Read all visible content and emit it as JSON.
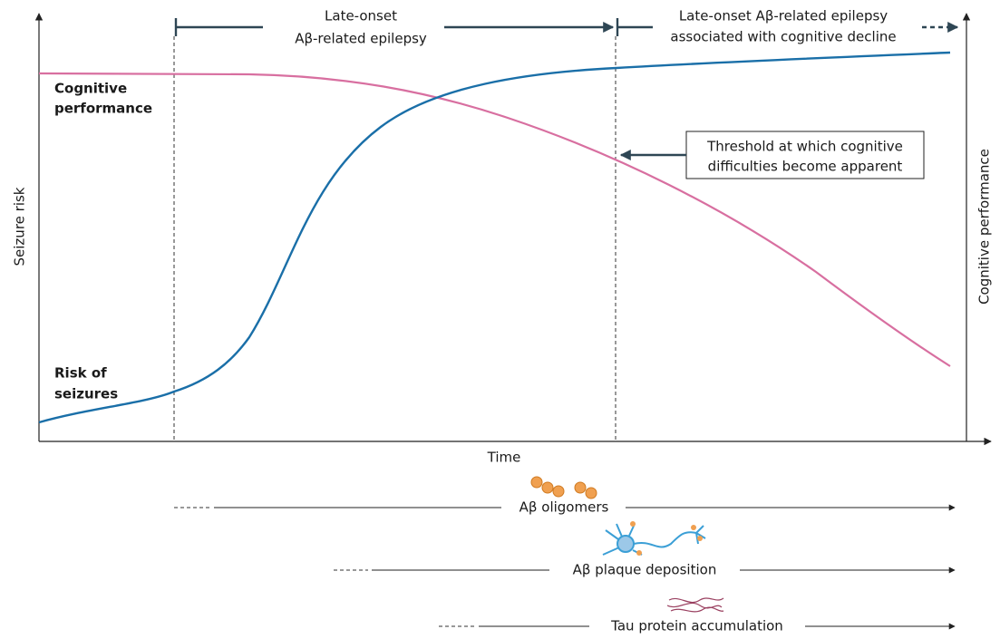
{
  "axes": {
    "y_left_label": "Seizure risk",
    "y_right_label": "Cognitive performance",
    "x_label": "Time"
  },
  "curves": [
    {
      "label": [
        "Cognitive",
        "performance"
      ]
    },
    {
      "label": [
        "Risk of",
        "seizures"
      ]
    }
  ],
  "phases": [
    {
      "label": [
        "Late-onset",
        "Aβ-related epilepsy"
      ]
    },
    {
      "label": [
        "Late-onset Aβ-related epilepsy",
        "associated with cognitive decline"
      ]
    }
  ],
  "annotation": [
    "Threshold at which cognitive",
    "difficulties become apparent"
  ],
  "processes": [
    "Aβ oligomers",
    "Aβ plaque deposition",
    "Tau protein accumulation"
  ]
}
